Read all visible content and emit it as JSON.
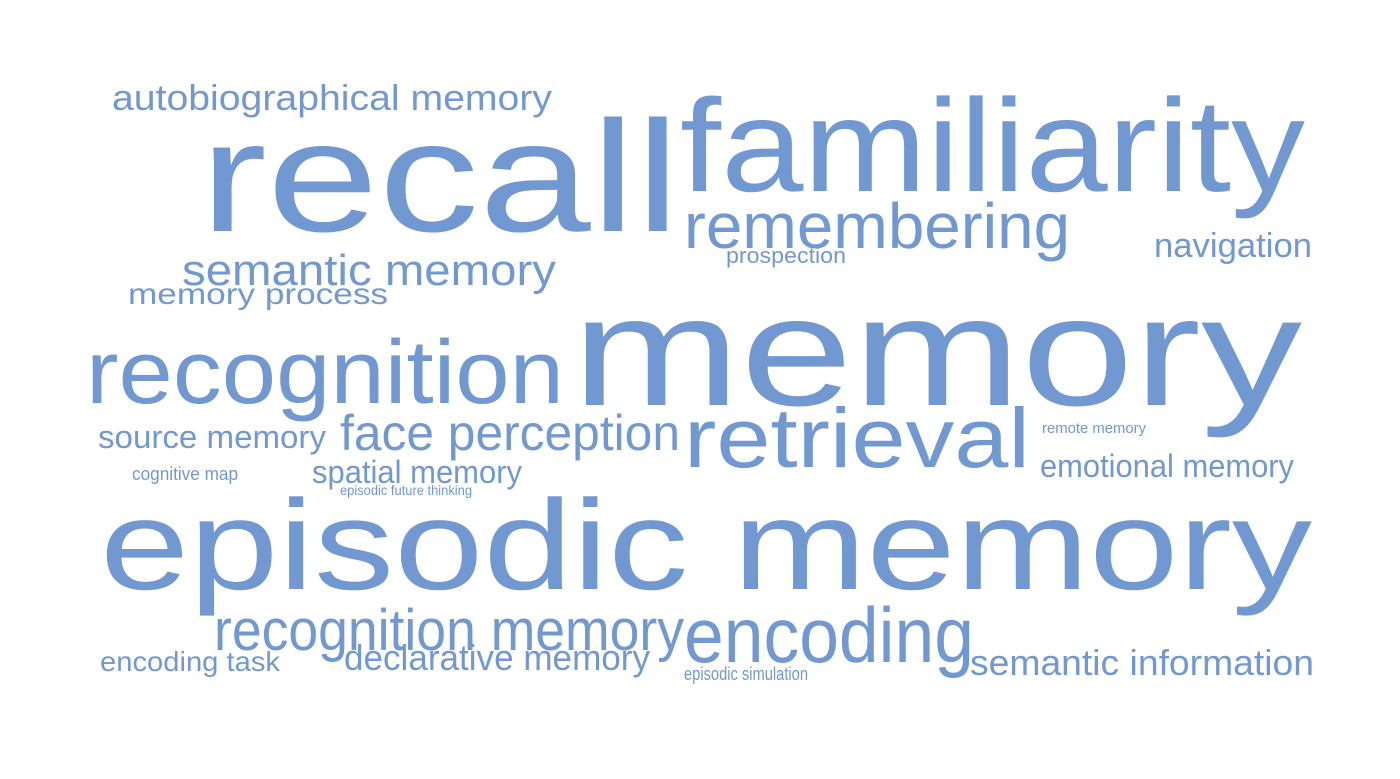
{
  "colors": {
    "word": "#7298d1",
    "background": "#ffffff"
  },
  "words": [
    {
      "id": "memory",
      "text": "memory"
    },
    {
      "id": "episodic-memory",
      "text": "episodic memory"
    },
    {
      "id": "recall",
      "text": "recall"
    },
    {
      "id": "familiarity",
      "text": "familiarity"
    },
    {
      "id": "recognition",
      "text": "recognition"
    },
    {
      "id": "retrieval",
      "text": "retrieval"
    },
    {
      "id": "encoding",
      "text": "encoding"
    },
    {
      "id": "remembering",
      "text": "remembering"
    },
    {
      "id": "recognition-memory",
      "text": "recognition memory"
    },
    {
      "id": "face-perception",
      "text": "face perception"
    },
    {
      "id": "semantic-memory",
      "text": "semantic memory"
    },
    {
      "id": "autobiographical-memory",
      "text": "autobiographical memory"
    },
    {
      "id": "semantic-information",
      "text": "semantic information"
    },
    {
      "id": "declarative-memory",
      "text": "declarative memory"
    },
    {
      "id": "navigation",
      "text": "navigation"
    },
    {
      "id": "emotional-memory",
      "text": "emotional memory"
    },
    {
      "id": "spatial-memory",
      "text": "spatial memory"
    },
    {
      "id": "source-memory",
      "text": "source memory"
    },
    {
      "id": "memory-process",
      "text": "memory process"
    },
    {
      "id": "encoding-task",
      "text": "encoding task"
    },
    {
      "id": "prospection",
      "text": "prospection"
    },
    {
      "id": "cognitive-map",
      "text": "cognitive map"
    },
    {
      "id": "episodic-simulation",
      "text": "episodic simulation"
    },
    {
      "id": "remote-memory",
      "text": "remote memory"
    },
    {
      "id": "episodic-future-thinking",
      "text": "episodic future thinking"
    }
  ]
}
